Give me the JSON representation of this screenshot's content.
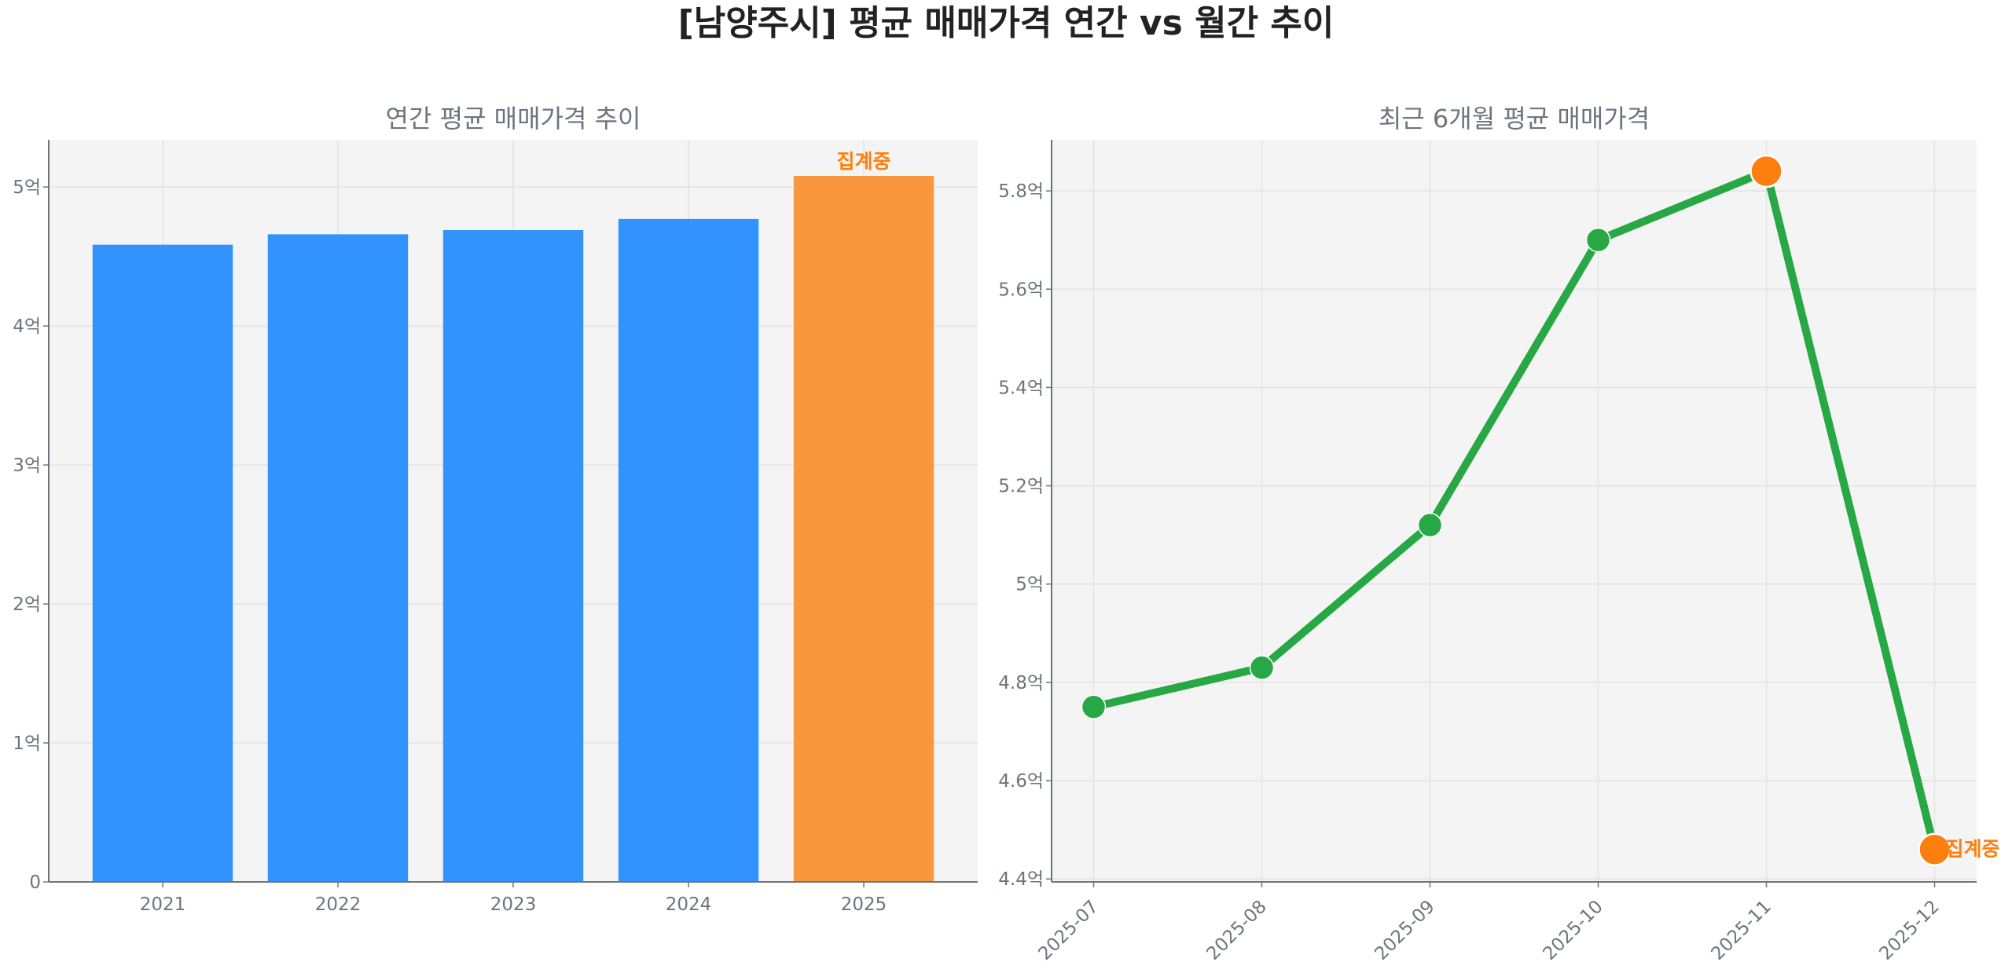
{
  "title": "[남양주시] 평균 매매가격 연간 vs 월간 추이",
  "colors": {
    "bar": "#3193fb",
    "bar_highlight": "#f9973f",
    "line": "#28a745",
    "marker_highlight": "#ff7f0e",
    "annotation": "#ff7f0e",
    "axes_bg": "#f4f4f4",
    "text": "#6c757d"
  },
  "chart_data": [
    {
      "type": "bar",
      "title": "연간 평균 매매가격 추이",
      "categories": [
        "2021",
        "2022",
        "2023",
        "2024",
        "2025"
      ],
      "values": [
        4.585,
        4.66,
        4.69,
        4.77,
        5.08
      ],
      "unit": "억",
      "yticks": [
        0,
        1,
        2,
        3,
        4,
        5
      ],
      "ytick_labels": [
        "0",
        "1억",
        "2억",
        "3억",
        "4억",
        "5억"
      ],
      "ylim": [
        0,
        5.34
      ],
      "grid": true,
      "highlight_index": 4,
      "annotation": {
        "category": "2025",
        "text": "집계중"
      }
    },
    {
      "type": "line",
      "title": "최근 6개월 평균 매매가격",
      "categories": [
        "2025-07",
        "2025-08",
        "2025-09",
        "2025-10",
        "2025-11",
        "2025-12"
      ],
      "values": [
        4.75,
        4.83,
        5.12,
        5.7,
        5.84,
        4.46
      ],
      "unit": "억",
      "yticks": [
        4.4,
        4.6,
        4.8,
        5.0,
        5.2,
        5.4,
        5.6,
        5.8
      ],
      "ytick_labels": [
        "4.4억",
        "4.6억",
        "4.8억",
        "5억",
        "5.2억",
        "5.4억",
        "5.6억",
        "5.8억"
      ],
      "ylim": [
        4.394,
        5.904
      ],
      "grid": true,
      "highlight_points": [
        "2025-11",
        "2025-12"
      ],
      "annotation": {
        "category": "2025-12",
        "text": "집계중"
      }
    }
  ]
}
